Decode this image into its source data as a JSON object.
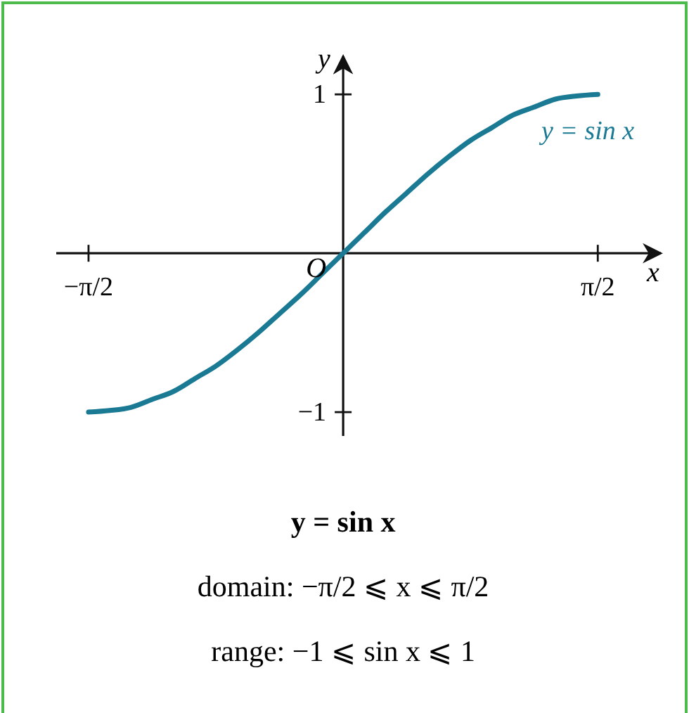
{
  "chart_data": {
    "type": "line",
    "title": null,
    "xlabel": "x",
    "ylabel": "y",
    "x": [
      -1.5708,
      -1.4399,
      -1.309,
      -1.1781,
      -1.0472,
      -0.9163,
      -0.7854,
      -0.6545,
      -0.5236,
      -0.3927,
      -0.2618,
      -0.1309,
      0,
      0.1309,
      0.2618,
      0.3927,
      0.5236,
      0.6545,
      0.7854,
      0.9163,
      1.0472,
      1.1781,
      1.309,
      1.4399,
      1.5708
    ],
    "series": [
      {
        "name": "y = sin x",
        "color": "#1a7a94",
        "values": [
          -1,
          -0.99,
          -0.97,
          -0.92,
          -0.87,
          -0.79,
          -0.71,
          -0.61,
          -0.5,
          -0.38,
          -0.26,
          -0.13,
          0,
          0.13,
          0.26,
          0.38,
          0.5,
          0.61,
          0.71,
          0.79,
          0.87,
          0.92,
          0.97,
          0.99,
          1
        ]
      }
    ],
    "xlim": [
      -1.77,
      1.96
    ],
    "ylim": [
      -1.15,
      1.24
    ],
    "xticks": [
      {
        "value": -1.5708,
        "label": "−π/2"
      },
      {
        "value": 1.5708,
        "label": "π/2"
      }
    ],
    "yticks": [
      1,
      {
        "value": -1,
        "label": "−1"
      }
    ],
    "grid": false,
    "line_style": "solid",
    "annotations": [
      {
        "text": "O",
        "x": 0,
        "y": 0
      },
      "y = sin x",
      "domain: −π/2 ⩽ x ⩽ π/2",
      "range: −1 ⩽ sin x ⩽ 1"
    ]
  }
}
